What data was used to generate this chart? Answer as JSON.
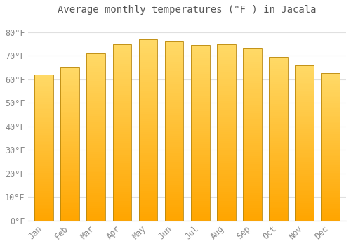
{
  "title": "Average monthly temperatures (°F ) in Jacala",
  "months": [
    "Jan",
    "Feb",
    "Mar",
    "Apr",
    "May",
    "Jun",
    "Jul",
    "Aug",
    "Sep",
    "Oct",
    "Nov",
    "Dec"
  ],
  "values": [
    62,
    65,
    71,
    75,
    77,
    76,
    74.5,
    75,
    73,
    69.5,
    66,
    62.5
  ],
  "bar_color_bottom": "#FFA500",
  "bar_color_top": "#FFD966",
  "yticks": [
    0,
    10,
    20,
    30,
    40,
    50,
    60,
    70,
    80
  ],
  "ytick_labels": [
    "0°F",
    "10°F",
    "20°F",
    "30°F",
    "40°F",
    "50°F",
    "60°F",
    "70°F",
    "80°F"
  ],
  "ylim": [
    0,
    85
  ],
  "background_color": "#ffffff",
  "grid_color": "#e0e0e0",
  "title_fontsize": 10,
  "tick_fontsize": 8.5,
  "bar_edge_color": "#b8860b",
  "bar_width": 0.72
}
